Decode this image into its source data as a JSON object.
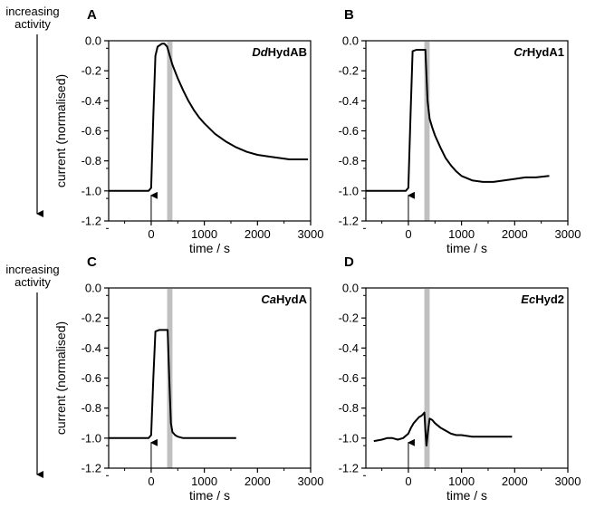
{
  "figure": {
    "side_labels": [
      {
        "line1": "increasing",
        "line2": "activity"
      },
      {
        "line1": "increasing",
        "line2": "activity"
      }
    ],
    "ylabel": "current (normalised)",
    "xlabel": "time / s",
    "colors": {
      "line": "#000000",
      "band": "#c0c0c0",
      "arrow": "#000000"
    }
  },
  "chart_data": [
    {
      "type": "line",
      "panel_label": "A",
      "enzyme_italic": "Dd",
      "enzyme_rest": "HydAB",
      "xlim": [
        -800,
        3000
      ],
      "ylim": [
        -1.2,
        0.0
      ],
      "x_ticks": [
        "0",
        "1000",
        "2000",
        "3000"
      ],
      "y_ticks": [
        "0.0",
        "-0.2",
        "-0.4",
        "-0.6",
        "-0.8",
        "-1.0",
        "-1.2"
      ],
      "shaded_band_x": [
        300,
        400
      ],
      "injection_arrow_x": 0,
      "series": [
        {
          "x": [
            -800,
            -600,
            -400,
            -200,
            -50,
            0,
            40,
            80,
            120,
            160,
            200,
            250,
            300,
            350,
            400,
            500,
            600,
            700,
            800,
            900,
            1000,
            1200,
            1400,
            1600,
            1800,
            2000,
            2200,
            2400,
            2600,
            2800,
            2950
          ],
          "y": [
            -1.0,
            -1.0,
            -1.0,
            -1.0,
            -1.0,
            -0.98,
            -0.5,
            -0.1,
            -0.04,
            -0.03,
            -0.02,
            -0.02,
            -0.04,
            -0.1,
            -0.16,
            -0.25,
            -0.33,
            -0.4,
            -0.46,
            -0.51,
            -0.55,
            -0.62,
            -0.67,
            -0.71,
            -0.74,
            -0.76,
            -0.77,
            -0.78,
            -0.79,
            -0.79,
            -0.79
          ]
        }
      ]
    },
    {
      "type": "line",
      "panel_label": "B",
      "enzyme_italic": "Cr",
      "enzyme_rest": "HydA1",
      "xlim": [
        -800,
        3000
      ],
      "ylim": [
        -1.2,
        0.0
      ],
      "x_ticks": [
        "0",
        "1000",
        "2000",
        "3000"
      ],
      "y_ticks": [
        "0.0",
        "-0.2",
        "-0.4",
        "-0.6",
        "-0.8",
        "-1.0",
        "-1.2"
      ],
      "shaded_band_x": [
        300,
        400
      ],
      "injection_arrow_x": 0,
      "series": [
        {
          "x": [
            -800,
            -600,
            -400,
            -200,
            -50,
            0,
            40,
            80,
            150,
            250,
            320,
            360,
            400,
            450,
            500,
            600,
            700,
            800,
            900,
            1000,
            1200,
            1400,
            1600,
            1800,
            2000,
            2200,
            2400,
            2650
          ],
          "y": [
            -1.0,
            -1.0,
            -1.0,
            -1.0,
            -1.0,
            -0.98,
            -0.5,
            -0.07,
            -0.06,
            -0.06,
            -0.06,
            -0.4,
            -0.52,
            -0.58,
            -0.63,
            -0.71,
            -0.78,
            -0.83,
            -0.87,
            -0.9,
            -0.93,
            -0.94,
            -0.94,
            -0.93,
            -0.92,
            -0.91,
            -0.91,
            -0.9
          ]
        }
      ]
    },
    {
      "type": "line",
      "panel_label": "C",
      "enzyme_italic": "Ca",
      "enzyme_rest": "HydA",
      "xlim": [
        -800,
        3000
      ],
      "ylim": [
        -1.2,
        0.0
      ],
      "x_ticks": [
        "0",
        "1000",
        "2000",
        "3000"
      ],
      "y_ticks": [
        "0.0",
        "-0.2",
        "-0.4",
        "-0.6",
        "-0.8",
        "-1.0",
        "-1.2"
      ],
      "shaded_band_x": [
        300,
        400
      ],
      "injection_arrow_x": 0,
      "series": [
        {
          "x": [
            -800,
            -600,
            -400,
            -200,
            -50,
            0,
            40,
            80,
            150,
            250,
            310,
            340,
            370,
            400,
            450,
            500,
            600,
            800,
            1000,
            1200,
            1400,
            1600
          ],
          "y": [
            -1.0,
            -1.0,
            -1.0,
            -1.0,
            -1.0,
            -0.98,
            -0.6,
            -0.29,
            -0.28,
            -0.28,
            -0.28,
            -0.6,
            -0.9,
            -0.96,
            -0.98,
            -0.99,
            -1.0,
            -1.0,
            -1.0,
            -1.0,
            -1.0,
            -1.0
          ]
        }
      ]
    },
    {
      "type": "line",
      "panel_label": "D",
      "enzyme_italic": "Ec",
      "enzyme_rest": "Hyd2",
      "xlim": [
        -800,
        3000
      ],
      "ylim": [
        -1.2,
        0.0
      ],
      "x_ticks": [
        "0",
        "1000",
        "2000",
        "3000"
      ],
      "y_ticks": [
        "0.0",
        "-0.2",
        "-0.4",
        "-0.6",
        "-0.8",
        "-1.0",
        "-1.2"
      ],
      "shaded_band_x": [
        300,
        400
      ],
      "injection_arrow_x": 0,
      "series": [
        {
          "x": [
            -650,
            -500,
            -400,
            -300,
            -200,
            -100,
            0,
            50,
            100,
            150,
            200,
            250,
            300,
            320,
            340,
            370,
            400,
            450,
            500,
            600,
            700,
            800,
            900,
            1000,
            1200,
            1400,
            1600,
            1800,
            1950
          ],
          "y": [
            -1.02,
            -1.01,
            -1.0,
            -1.0,
            -1.01,
            -1.0,
            -0.97,
            -0.93,
            -0.9,
            -0.88,
            -0.86,
            -0.85,
            -0.83,
            -0.95,
            -1.05,
            -0.95,
            -0.87,
            -0.88,
            -0.9,
            -0.93,
            -0.95,
            -0.97,
            -0.98,
            -0.98,
            -0.99,
            -0.99,
            -0.99,
            -0.99,
            -0.99
          ]
        }
      ]
    }
  ]
}
